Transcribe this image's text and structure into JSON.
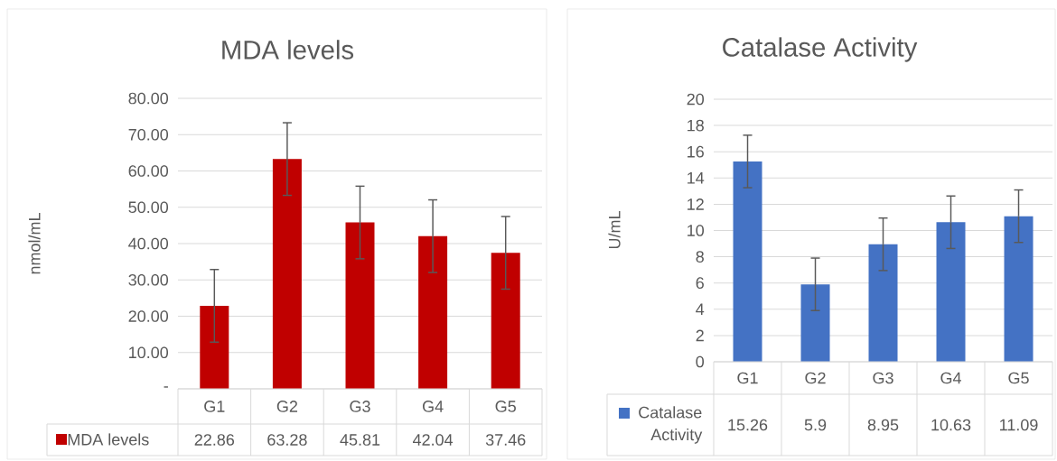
{
  "chart_data": [
    {
      "type": "bar",
      "title": "MDA levels",
      "ylabel": "nmol/mL",
      "categories": [
        "G1",
        "G2",
        "G3",
        "G4",
        "G5"
      ],
      "series": [
        {
          "name": "MDA levels",
          "color": "#c00000",
          "values": [
            22.86,
            63.28,
            45.81,
            42.04,
            37.46
          ],
          "errors": [
            10,
            10,
            10,
            10,
            10
          ]
        }
      ],
      "ylim": [
        0,
        80
      ],
      "yticks": [
        {
          "value": 0,
          "label": "-"
        },
        {
          "value": 10,
          "label": "10.00"
        },
        {
          "value": 20,
          "label": "20.00"
        },
        {
          "value": 30,
          "label": "30.00"
        },
        {
          "value": 40,
          "label": "40.00"
        },
        {
          "value": 50,
          "label": "50.00"
        },
        {
          "value": 60,
          "label": "60.00"
        },
        {
          "value": 70,
          "label": "70.00"
        },
        {
          "value": 80,
          "label": "80.00"
        }
      ],
      "grid": "y",
      "data_labels": true,
      "legend": "bottom"
    },
    {
      "type": "bar",
      "title": "Catalase Activity",
      "ylabel": "U/mL",
      "categories": [
        "G1",
        "G2",
        "G3",
        "G4",
        "G5"
      ],
      "series": [
        {
          "name": "Catalase Activity",
          "color": "#4472c4",
          "values": [
            15.26,
            5.9,
            8.95,
            10.63,
            11.09
          ],
          "errors": [
            2,
            2,
            2,
            2,
            2
          ]
        }
      ],
      "ylim": [
        0,
        20
      ],
      "yticks": [
        0,
        2,
        4,
        6,
        8,
        10,
        12,
        14,
        16,
        18,
        20
      ],
      "grid": "y",
      "data_labels": true,
      "legend": "bottom"
    }
  ]
}
